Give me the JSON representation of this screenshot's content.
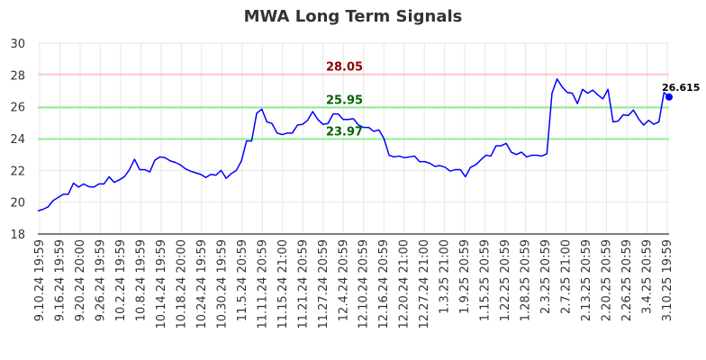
{
  "chart_data": {
    "type": "line",
    "title": "MWA Long Term Signals",
    "xlabel": "",
    "ylabel": "",
    "ylim": [
      18,
      30
    ],
    "yticks": [
      18,
      20,
      22,
      24,
      26,
      28,
      30
    ],
    "grid": true,
    "x_tick_labels": [
      "9.10.24 19:59",
      "9.16.24 19:59",
      "9.20.24 20:00",
      "9.26.24 19:59",
      "10.2.24 19:59",
      "10.8.24 19:59",
      "10.14.24 19:59",
      "10.18.24 20:00",
      "10.24.24 19:59",
      "10.30.24 19:59",
      "11.5.24 20:59",
      "11.11.24 20:59",
      "11.15.24 21:00",
      "11.21.24 20:59",
      "11.27.24 20:59",
      "12.4.24 20:59",
      "12.10.24 20:59",
      "12.16.24 20:59",
      "12.20.24 21:00",
      "12.27.24 21:00",
      "1.3.25 21:00",
      "1.9.25 20:59",
      "1.15.25 20:59",
      "1.22.25 20:59",
      "1.28.25 20:59",
      "2.3.25 20:59",
      "2.7.25 21:00",
      "2.13.25 20:59",
      "2.20.25 20:59",
      "2.26.25 20:59",
      "3.4.25 20:59",
      "3.10.25 19:59"
    ],
    "series": [
      {
        "values": [
          19.45,
          19.55,
          19.7,
          20.1,
          20.3,
          20.5,
          20.5,
          21.2,
          20.95,
          21.15,
          20.98,
          20.95,
          21.15,
          21.15,
          21.6,
          21.25,
          21.4,
          21.6,
          22.05,
          22.7,
          22.05,
          22.05,
          21.9,
          22.65,
          22.85,
          22.8,
          22.6,
          22.5,
          22.35,
          22.1,
          21.95,
          21.85,
          21.75,
          21.55,
          21.75,
          21.7,
          22.0,
          21.5,
          21.8,
          22.0,
          22.6,
          23.85,
          23.85,
          25.6,
          25.85,
          25.05,
          24.95,
          24.35,
          24.25,
          24.35,
          24.35,
          24.85,
          24.9,
          25.15,
          25.7,
          25.2,
          24.9,
          24.95,
          25.55,
          25.55,
          25.2,
          25.2,
          25.25,
          24.85,
          24.7,
          24.7,
          24.45,
          24.55,
          24.0,
          22.95,
          22.85,
          22.9,
          22.8,
          22.85,
          22.9,
          22.55,
          22.55,
          22.45,
          22.25,
          22.3,
          22.2,
          21.95,
          22.05,
          22.05,
          21.6,
          22.2,
          22.35,
          22.65,
          22.95,
          22.9,
          23.55,
          23.55,
          23.7,
          23.15,
          23.0,
          23.15,
          22.85,
          22.95,
          22.95,
          22.9,
          23.05,
          26.85,
          27.75,
          27.25,
          26.9,
          26.85,
          26.2,
          27.1,
          26.85,
          27.05,
          26.75,
          26.5,
          27.1,
          25.05,
          25.1,
          25.5,
          25.45,
          25.8,
          25.25,
          24.85,
          25.15,
          24.9,
          25.05,
          26.9,
          26.615
        ]
      }
    ],
    "reference_lines": [
      {
        "value": 28.05,
        "label": "28.05",
        "color": "#ffcccc",
        "label_color": "#8b0000"
      },
      {
        "value": 25.95,
        "label": "25.95",
        "color": "#90ee90",
        "label_color": "#006400"
      },
      {
        "value": 23.97,
        "label": "23.97",
        "color": "#90ee90",
        "label_color": "#006400"
      }
    ],
    "last_value_label": "26.615",
    "line_color": "#0000ff"
  }
}
